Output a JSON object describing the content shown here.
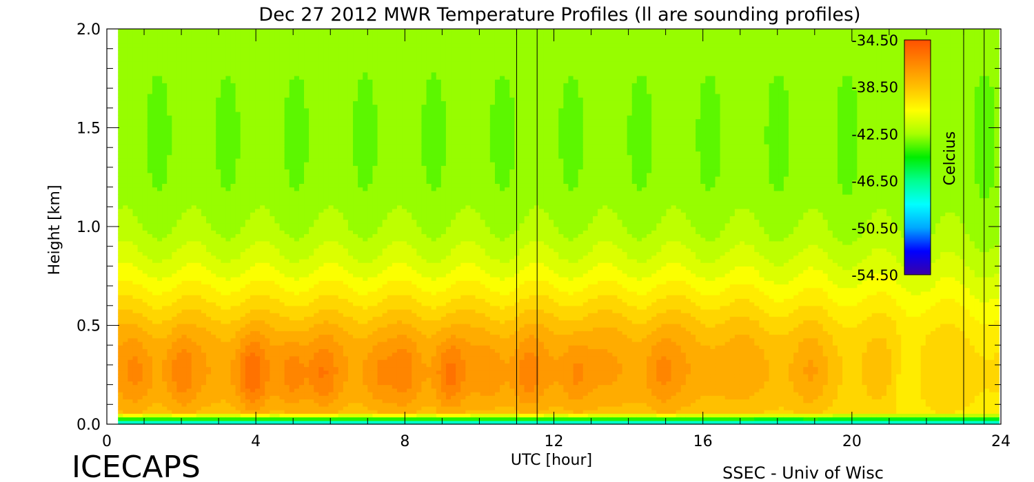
{
  "chart_data": {
    "type": "heatmap",
    "title": "Dec 27 2012 MWR Temperature Profiles (ll are sounding profiles)",
    "xlabel": "UTC [hour]",
    "ylabel": "Height [km]",
    "xlim": [
      0,
      24
    ],
    "ylim": [
      0,
      2.0
    ],
    "x_ticks": [
      "0",
      "4",
      "8",
      "12",
      "16",
      "20",
      "24"
    ],
    "y_ticks": [
      "0.0",
      "0.5",
      "1.0",
      "1.5",
      "2.0"
    ],
    "colorbar": {
      "label": "Celcius",
      "range": [
        -54.5,
        -34.5
      ],
      "ticks": [
        "-34.50",
        "-38.50",
        "-42.50",
        "-46.50",
        "-50.50",
        "-54.50"
      ],
      "placement": "top-right (inside plot)"
    },
    "sounding_lines_utc": [
      11.0,
      11.55,
      23.0,
      23.55
    ],
    "data_start_utc": 0.3,
    "surface_temperature_c": -49,
    "warm_core_height_km": 0.25,
    "warm_cores": [
      {
        "utc": 0.8,
        "temp_c": -36.5
      },
      {
        "utc": 2.0,
        "temp_c": -36.2
      },
      {
        "utc": 3.9,
        "temp_c": -35.3
      },
      {
        "utc": 5.0,
        "temp_c": -36.0
      },
      {
        "utc": 5.8,
        "temp_c": -36.0
      },
      {
        "utc": 7.3,
        "temp_c": -36.5
      },
      {
        "utc": 8.0,
        "temp_c": -36.3
      },
      {
        "utc": 9.2,
        "temp_c": -35.6
      },
      {
        "utc": 10.3,
        "temp_c": -36.8
      },
      {
        "utc": 11.3,
        "temp_c": -36.3
      },
      {
        "utc": 12.6,
        "temp_c": -36.3
      },
      {
        "utc": 14.9,
        "temp_c": -36.5
      },
      {
        "utc": 18.9,
        "temp_c": -36.7
      },
      {
        "utc": 20.0,
        "temp_c": -38.0
      },
      {
        "utc": 21.5,
        "temp_c": -38.8
      }
    ],
    "temperature_at_2km_c": -43.0,
    "grid": false
  },
  "footer": {
    "left": "ICECAPS",
    "right": "SSEC - Univ of Wisc"
  },
  "colors": {
    "scale": [
      "#3a00a8",
      "#0000ff",
      "#00a8ff",
      "#00ffff",
      "#00ff90",
      "#00ee00",
      "#a8ff00",
      "#ffff00",
      "#ffc000",
      "#ff8800",
      "#ff5000"
    ]
  }
}
